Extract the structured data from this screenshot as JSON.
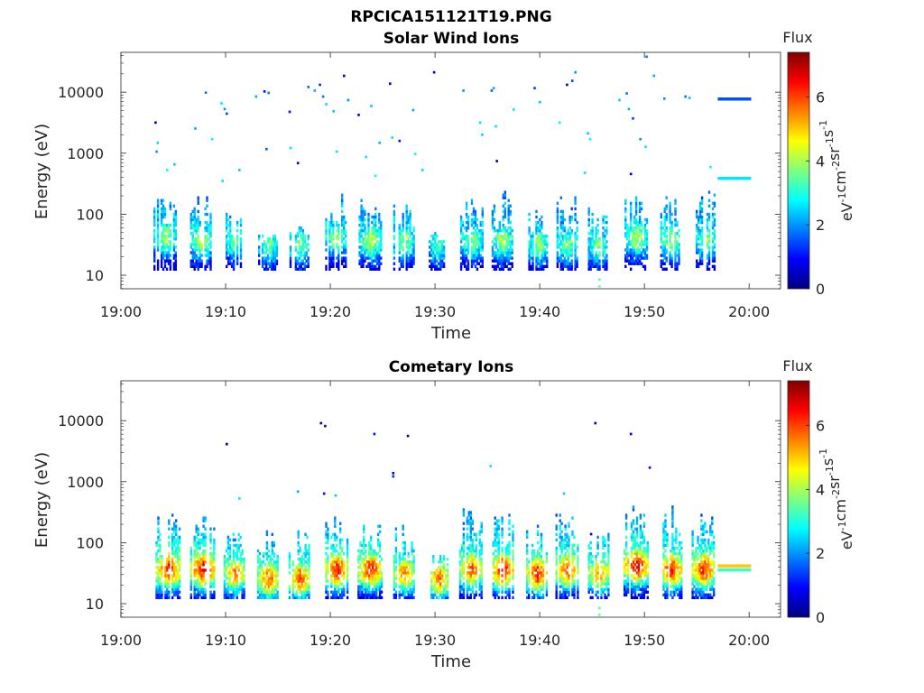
{
  "figure_title": "RPCICA151121T19.PNG",
  "colormap": [
    "#00007f",
    "#0000ff",
    "#007fff",
    "#00ffff",
    "#7fff7f",
    "#ffff00",
    "#ff7f00",
    "#ff0000",
    "#7f0000"
  ],
  "chart_data": [
    {
      "type": "heatmap",
      "title": "Solar Wind Ions",
      "xlabel": "Time",
      "ylabel": "Energy (eV)",
      "x_ticks": [
        "19:00",
        "19:10",
        "19:20",
        "19:30",
        "19:40",
        "19:50",
        "20:00"
      ],
      "x_range_min": [
        0,
        63
      ],
      "y_ticks": [
        "10",
        "100",
        "1000",
        "10000"
      ],
      "y_tick_values": [
        10,
        100,
        1000,
        10000
      ],
      "y_scale": "log",
      "y_range": [
        6,
        45000
      ],
      "colorbar_title": "Flux",
      "colorbar_label": "eV-1cm-2sr-1s-1",
      "colorbar_ticks": [
        "0",
        "2",
        "4",
        "6"
      ],
      "colorbar_range": [
        0,
        7.4
      ],
      "bursts": [
        {
          "t": 4.2,
          "w": 2.2,
          "emax": 180,
          "core": 40,
          "peak": 4.0
        },
        {
          "t": 7.6,
          "w": 2.0,
          "emax": 250,
          "core": 35,
          "peak": 4.2
        },
        {
          "t": 10.8,
          "w": 1.6,
          "emax": 100,
          "core": 35,
          "peak": 3.8
        },
        {
          "t": 14.0,
          "w": 1.8,
          "emax": 45,
          "core": 30,
          "peak": 3.6
        },
        {
          "t": 17.0,
          "w": 1.8,
          "emax": 60,
          "core": 30,
          "peak": 3.8
        },
        {
          "t": 20.5,
          "w": 2.0,
          "emax": 250,
          "core": 40,
          "peak": 4.0
        },
        {
          "t": 23.8,
          "w": 2.2,
          "emax": 200,
          "core": 35,
          "peak": 4.2
        },
        {
          "t": 27.0,
          "w": 2.0,
          "emax": 150,
          "core": 35,
          "peak": 4.0
        },
        {
          "t": 30.2,
          "w": 1.6,
          "emax": 60,
          "core": 30,
          "peak": 3.6
        },
        {
          "t": 33.5,
          "w": 2.2,
          "emax": 200,
          "core": 35,
          "peak": 3.8
        },
        {
          "t": 36.4,
          "w": 2.0,
          "emax": 250,
          "core": 35,
          "peak": 4.2
        },
        {
          "t": 39.8,
          "w": 1.8,
          "emax": 120,
          "core": 30,
          "peak": 4.0
        },
        {
          "t": 42.6,
          "w": 2.0,
          "emax": 220,
          "core": 30,
          "peak": 3.8
        },
        {
          "t": 45.5,
          "w": 1.8,
          "emax": 120,
          "core": 30,
          "peak": 3.8
        },
        {
          "t": 49.2,
          "w": 2.2,
          "emax": 250,
          "core": 40,
          "peak": 4.2
        },
        {
          "t": 52.5,
          "w": 2.0,
          "emax": 200,
          "core": 35,
          "peak": 4.0
        },
        {
          "t": 55.8,
          "w": 1.8,
          "emax": 250,
          "core": 35,
          "peak": 4.0
        }
      ],
      "scatter": [
        {
          "t": 3.2,
          "e": 3000,
          "v": 0.3
        },
        {
          "t": 3.4,
          "e": 1400,
          "v": 2.5
        },
        {
          "t": 3.3,
          "e": 1000,
          "v": 2.0
        },
        {
          "t": 4.3,
          "e": 500,
          "v": 2.8
        },
        {
          "t": 5.0,
          "e": 620,
          "v": 2.4
        },
        {
          "t": 8.0,
          "e": 9300,
          "v": 1.8
        },
        {
          "t": 7.0,
          "e": 2400,
          "v": 2.2
        },
        {
          "t": 8.6,
          "e": 1600,
          "v": 2.8
        },
        {
          "t": 9.5,
          "e": 6200,
          "v": 2.6
        },
        {
          "t": 9.8,
          "e": 5000,
          "v": 2.0
        },
        {
          "t": 10.0,
          "e": 4200,
          "v": 1.4
        },
        {
          "t": 9.6,
          "e": 330,
          "v": 2.6
        },
        {
          "t": 11.2,
          "e": 500,
          "v": 2.4
        },
        {
          "t": 12.8,
          "e": 8000,
          "v": 2.2
        },
        {
          "t": 13.6,
          "e": 9700,
          "v": 1.0
        },
        {
          "t": 14.0,
          "e": 9200,
          "v": 1.8
        },
        {
          "t": 13.8,
          "e": 1100,
          "v": 1.6
        },
        {
          "t": 16.0,
          "e": 4500,
          "v": 1.0
        },
        {
          "t": 16.1,
          "e": 1150,
          "v": 2.6
        },
        {
          "t": 16.8,
          "e": 650,
          "v": 0.3
        },
        {
          "t": 17.8,
          "e": 11500,
          "v": 1.6
        },
        {
          "t": 18.4,
          "e": 10000,
          "v": 2.2
        },
        {
          "t": 19.2,
          "e": 8000,
          "v": 1.8
        },
        {
          "t": 18.9,
          "e": 12500,
          "v": 1.2
        },
        {
          "t": 19.5,
          "e": 6000,
          "v": 2.6
        },
        {
          "t": 20.2,
          "e": 4600,
          "v": 2.4
        },
        {
          "t": 21.2,
          "e": 17500,
          "v": 0.5
        },
        {
          "t": 20.5,
          "e": 1000,
          "v": 2.6
        },
        {
          "t": 21.6,
          "e": 7000,
          "v": 2.0
        },
        {
          "t": 22.6,
          "e": 4000,
          "v": 0.8
        },
        {
          "t": 23.8,
          "e": 5600,
          "v": 2.4
        },
        {
          "t": 24.6,
          "e": 1400,
          "v": 2.2
        },
        {
          "t": 23.3,
          "e": 820,
          "v": 2.6
        },
        {
          "t": 24.2,
          "e": 400,
          "v": 2.8
        },
        {
          "t": 25.8,
          "e": 1700,
          "v": 2.6
        },
        {
          "t": 26.5,
          "e": 1500,
          "v": 1.0
        },
        {
          "t": 25.6,
          "e": 13000,
          "v": 0.6
        },
        {
          "t": 27.8,
          "e": 4800,
          "v": 2.2
        },
        {
          "t": 29.8,
          "e": 20000,
          "v": 0.5
        },
        {
          "t": 28.0,
          "e": 920,
          "v": 2.8
        },
        {
          "t": 28.7,
          "e": 500,
          "v": 2.6
        },
        {
          "t": 32.6,
          "e": 10000,
          "v": 2.0
        },
        {
          "t": 34.2,
          "e": 3000,
          "v": 2.6
        },
        {
          "t": 34.4,
          "e": 1900,
          "v": 2.4
        },
        {
          "t": 35.3,
          "e": 10000,
          "v": 1.6
        },
        {
          "t": 35.5,
          "e": 11000,
          "v": 2.2
        },
        {
          "t": 35.7,
          "e": 2600,
          "v": 2.6
        },
        {
          "t": 35.8,
          "e": 700,
          "v": 0.5
        },
        {
          "t": 37.4,
          "e": 4900,
          "v": 2.6
        },
        {
          "t": 39.4,
          "e": 11000,
          "v": 1.4
        },
        {
          "t": 39.9,
          "e": 6500,
          "v": 2.4
        },
        {
          "t": 41.8,
          "e": 3000,
          "v": 2.8
        },
        {
          "t": 42.5,
          "e": 12500,
          "v": 0.5
        },
        {
          "t": 43.0,
          "e": 14500,
          "v": 1.4
        },
        {
          "t": 43.3,
          "e": 20000,
          "v": 2.0
        },
        {
          "t": 44.5,
          "e": 2000,
          "v": 2.4
        },
        {
          "t": 44.7,
          "e": 1600,
          "v": 2.8
        },
        {
          "t": 44.2,
          "e": 450,
          "v": 2.6
        },
        {
          "t": 47.5,
          "e": 7000,
          "v": 2.4
        },
        {
          "t": 48.2,
          "e": 9000,
          "v": 1.8
        },
        {
          "t": 48.4,
          "e": 5000,
          "v": 2.2
        },
        {
          "t": 48.8,
          "e": 3500,
          "v": 1.4
        },
        {
          "t": 49.5,
          "e": 1600,
          "v": 2.0
        },
        {
          "t": 50.1,
          "e": 36000,
          "v": 1.8
        },
        {
          "t": 50.8,
          "e": 17500,
          "v": 2.2
        },
        {
          "t": 51.8,
          "e": 7400,
          "v": 2.0
        },
        {
          "t": 50.0,
          "e": 1200,
          "v": 2.6
        },
        {
          "t": 53.8,
          "e": 8000,
          "v": 1.8
        },
        {
          "t": 54.2,
          "e": 7600,
          "v": 2.4
        },
        {
          "t": 56.2,
          "e": 560,
          "v": 2.8
        },
        {
          "t": 48.6,
          "e": 430,
          "v": 0.5
        },
        {
          "t": 45.6,
          "e": 6.2,
          "v": 3.6
        },
        {
          "t": 45.6,
          "e": 8.0,
          "v": 3.4
        }
      ],
      "bands": [
        {
          "t0": 57.0,
          "t1": 60.2,
          "e": 7800,
          "v": 1.5
        },
        {
          "t0": 57.0,
          "t1": 60.2,
          "e": 390,
          "v": 2.6
        }
      ]
    },
    {
      "type": "heatmap",
      "title": "Cometary Ions",
      "xlabel": "Time",
      "ylabel": "Energy (eV)",
      "x_ticks": [
        "19:00",
        "19:10",
        "19:20",
        "19:30",
        "19:40",
        "19:50",
        "20:00"
      ],
      "x_range_min": [
        0,
        63
      ],
      "y_ticks": [
        "10",
        "100",
        "1000",
        "10000"
      ],
      "y_tick_values": [
        10,
        100,
        1000,
        10000
      ],
      "y_scale": "log",
      "y_range": [
        6,
        45000
      ],
      "colorbar_title": "Flux",
      "colorbar_label": "eV-1cm-2sr-1s-1",
      "colorbar_ticks": [
        "0",
        "2",
        "4",
        "6"
      ],
      "colorbar_range": [
        0,
        7.4
      ],
      "bursts": [
        {
          "t": 4.5,
          "w": 2.4,
          "emax": 300,
          "core": 35,
          "peak": 6.4
        },
        {
          "t": 7.8,
          "w": 2.4,
          "emax": 300,
          "core": 35,
          "peak": 6.6
        },
        {
          "t": 10.8,
          "w": 2.0,
          "emax": 150,
          "core": 30,
          "peak": 5.6
        },
        {
          "t": 14.0,
          "w": 2.0,
          "emax": 150,
          "core": 25,
          "peak": 6.0
        },
        {
          "t": 17.0,
          "w": 2.0,
          "emax": 160,
          "core": 25,
          "peak": 6.0
        },
        {
          "t": 20.6,
          "w": 2.2,
          "emax": 300,
          "core": 35,
          "peak": 6.4
        },
        {
          "t": 23.8,
          "w": 2.4,
          "emax": 280,
          "core": 35,
          "peak": 6.4
        },
        {
          "t": 27.0,
          "w": 2.0,
          "emax": 200,
          "core": 30,
          "peak": 5.6
        },
        {
          "t": 30.3,
          "w": 1.8,
          "emax": 60,
          "core": 25,
          "peak": 5.8
        },
        {
          "t": 33.4,
          "w": 2.2,
          "emax": 350,
          "core": 35,
          "peak": 6.0
        },
        {
          "t": 36.4,
          "w": 2.2,
          "emax": 380,
          "core": 35,
          "peak": 6.6
        },
        {
          "t": 39.7,
          "w": 2.0,
          "emax": 200,
          "core": 30,
          "peak": 6.4
        },
        {
          "t": 42.6,
          "w": 2.2,
          "emax": 380,
          "core": 35,
          "peak": 6.0
        },
        {
          "t": 45.6,
          "w": 2.0,
          "emax": 150,
          "core": 30,
          "peak": 5.6
        },
        {
          "t": 49.2,
          "w": 2.4,
          "emax": 450,
          "core": 40,
          "peak": 6.6
        },
        {
          "t": 52.5,
          "w": 2.2,
          "emax": 450,
          "core": 35,
          "peak": 6.4
        },
        {
          "t": 55.6,
          "w": 2.2,
          "emax": 400,
          "core": 35,
          "peak": 6.4
        }
      ],
      "scatter": [
        {
          "t": 10.0,
          "e": 3900,
          "v": 0.2
        },
        {
          "t": 11.2,
          "e": 500,
          "v": 2.6
        },
        {
          "t": 16.8,
          "e": 650,
          "v": 2.2
        },
        {
          "t": 19.0,
          "e": 8600,
          "v": 0.3
        },
        {
          "t": 19.4,
          "e": 7700,
          "v": 0.5
        },
        {
          "t": 19.3,
          "e": 600,
          "v": 1.0
        },
        {
          "t": 20.4,
          "e": 560,
          "v": 2.4
        },
        {
          "t": 24.1,
          "e": 5700,
          "v": 1.0
        },
        {
          "t": 25.9,
          "e": 1300,
          "v": 0.5
        },
        {
          "t": 25.9,
          "e": 1150,
          "v": 1.2
        },
        {
          "t": 27.3,
          "e": 5300,
          "v": 0.5
        },
        {
          "t": 35.2,
          "e": 1700,
          "v": 2.6
        },
        {
          "t": 42.2,
          "e": 600,
          "v": 2.4
        },
        {
          "t": 45.2,
          "e": 8600,
          "v": 0.4
        },
        {
          "t": 44.8,
          "e": 130,
          "v": 0.6
        },
        {
          "t": 48.6,
          "e": 5700,
          "v": 0.6
        },
        {
          "t": 50.4,
          "e": 1600,
          "v": 1.0
        },
        {
          "t": 26.0,
          "e": 13,
          "v": 1.2
        },
        {
          "t": 45.6,
          "e": 6.2,
          "v": 3.6
        },
        {
          "t": 45.6,
          "e": 8.0,
          "v": 3.4
        }
      ],
      "bands": [
        {
          "t0": 57.0,
          "t1": 60.2,
          "e": 42,
          "v": 5.0
        },
        {
          "t0": 57.0,
          "t1": 60.2,
          "e": 36,
          "v": 3.2
        }
      ]
    }
  ]
}
